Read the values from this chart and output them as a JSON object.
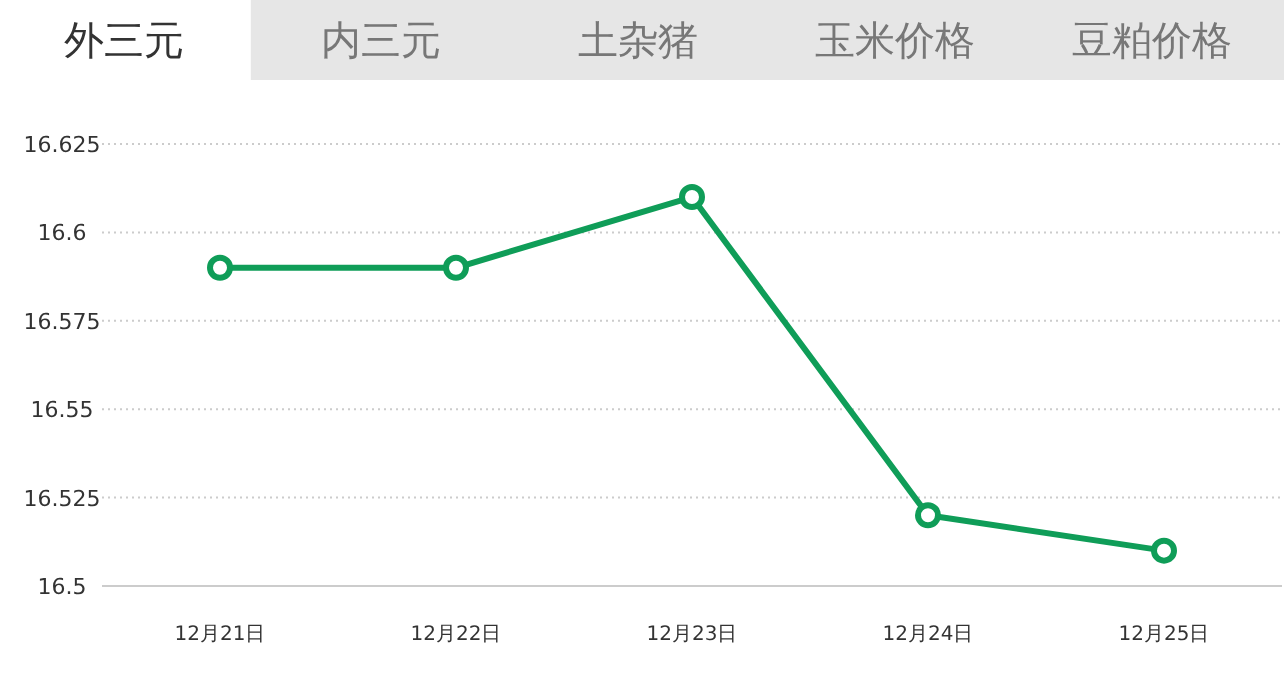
{
  "chart_data": {
    "type": "line",
    "annotations": [
      "外三元",
      "内三元",
      "土杂猪",
      "玉米价格",
      "豆粕价格"
    ],
    "categories": [
      "12月21日",
      "12月22日",
      "12月23日",
      "12月24日",
      "12月25日"
    ],
    "series": [
      {
        "color": "#0f9d58",
        "values": [
          16.59,
          16.59,
          16.61,
          16.52,
          16.51
        ]
      }
    ],
    "ylim": [
      16.5,
      16.625
    ],
    "yticks": [
      16.5,
      16.525,
      16.55,
      16.575,
      16.6,
      16.625
    ],
    "grid": "y",
    "marker": "circle",
    "line_style": "solid"
  }
}
